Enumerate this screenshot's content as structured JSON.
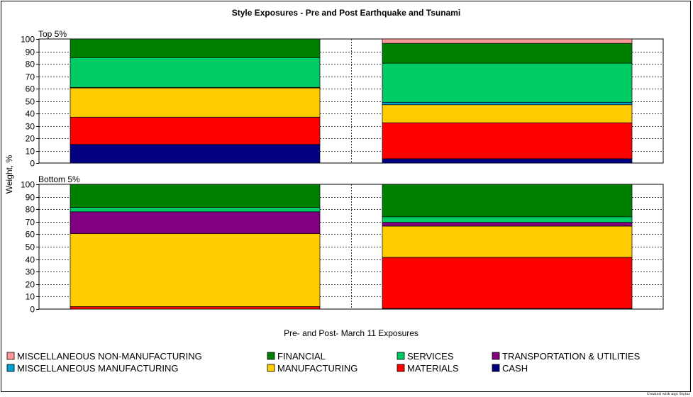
{
  "chart_data": {
    "type": "bar",
    "stacked": true,
    "title": "Style Exposures - Pre and Post Earthquake and Tsunami",
    "ylabel": "Weight, %",
    "xlabel": "Pre- and Post- March 11 Exposures",
    "ylim": [
      0,
      100
    ],
    "yticks": [
      "0",
      "10",
      "20",
      "30",
      "40",
      "50",
      "60",
      "70",
      "80",
      "90",
      "100"
    ],
    "grid": true,
    "legend_position": "bottom",
    "series_order": [
      "CASH",
      "MATERIALS",
      "MANUFACTURING",
      "MISCELLANEOUS MANUFACTURING",
      "TRANSPORTATION & UTILITIES",
      "SERVICES",
      "FINANCIAL",
      "MISCELLANEOUS NON-MANUFACTURING"
    ],
    "colors": {
      "CASH": "#000080",
      "MATERIALS": "#ff0000",
      "MANUFACTURING": "#ffcc00",
      "MISCELLANEOUS MANUFACTURING": "#00a0d0",
      "TRANSPORTATION & UTILITIES": "#800080",
      "SERVICES": "#00cc66",
      "FINANCIAL": "#008000",
      "MISCELLANEOUS NON-MANUFACTURING": "#ff9999"
    },
    "panels": [
      {
        "label": "Top 5%",
        "bars": [
          {
            "CASH": 15,
            "MATERIALS": 22,
            "MANUFACTURING": 23.5,
            "MISCELLANEOUS MANUFACTURING": 0.5,
            "TRANSPORTATION & UTILITIES": 0,
            "SERVICES": 24,
            "FINANCIAL": 15,
            "MISCELLANEOUS NON-MANUFACTURING": 0
          },
          {
            "CASH": 3.5,
            "MATERIALS": 29,
            "MANUFACTURING": 14.5,
            "MISCELLANEOUS MANUFACTURING": 2,
            "TRANSPORTATION & UTILITIES": 0,
            "SERVICES": 31.5,
            "FINANCIAL": 16,
            "MISCELLANEOUS NON-MANUFACTURING": 3.5
          }
        ]
      },
      {
        "label": "Bottom 5%",
        "bars": [
          {
            "CASH": 0,
            "MATERIALS": 2,
            "MANUFACTURING": 58.5,
            "MISCELLANEOUS MANUFACTURING": 0,
            "TRANSPORTATION & UTILITIES": 17.5,
            "SERVICES": 3.5,
            "FINANCIAL": 18.5,
            "MISCELLANEOUS NON-MANUFACTURING": 0
          },
          {
            "CASH": 0.5,
            "MATERIALS": 41,
            "MANUFACTURING": 25,
            "MISCELLANEOUS MANUFACTURING": 0,
            "TRANSPORTATION & UTILITIES": 3,
            "SERVICES": 4.5,
            "FINANCIAL": 26,
            "MISCELLANEOUS NON-MANUFACTURING": 0
          }
        ]
      }
    ],
    "legend": [
      "MISCELLANEOUS NON-MANUFACTURING",
      "FINANCIAL",
      "SERVICES",
      "TRANSPORTATION & UTILITIES",
      "MISCELLANEOUS MANUFACTURING",
      "MANUFACTURING",
      "MATERIALS",
      "CASH"
    ]
  },
  "footer": {
    "credit": "Created with mpi Stylus"
  }
}
